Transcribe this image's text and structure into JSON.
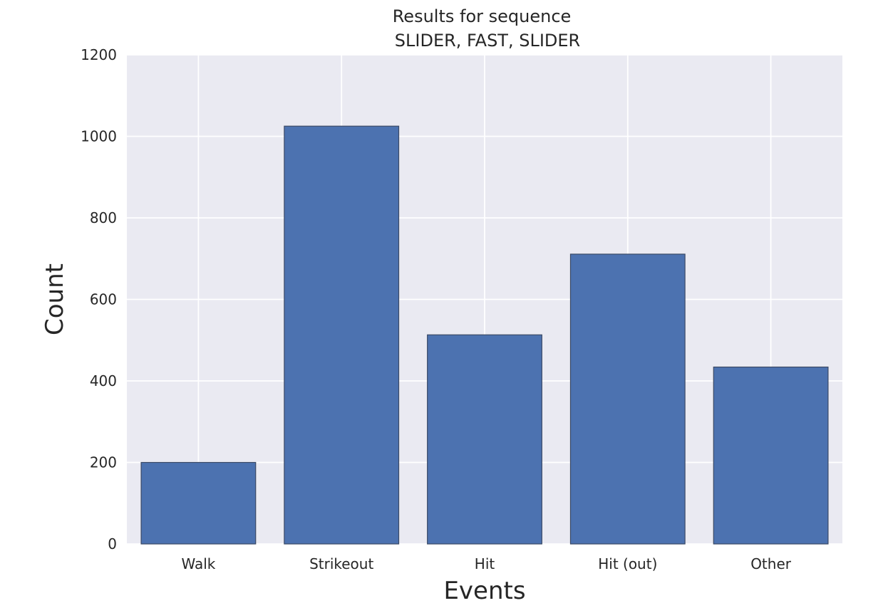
{
  "chart_data": {
    "type": "bar",
    "title_line1": "Results for sequence",
    "title_line2": "SLIDER, FAST, SLIDER",
    "xlabel": "Events",
    "ylabel": "Count",
    "categories": [
      "Walk",
      "Strikeout",
      "Hit",
      "Hit (out)",
      "Other"
    ],
    "values": [
      200,
      1025,
      513,
      711,
      434
    ],
    "ylim": [
      0,
      1200
    ],
    "yticks": [
      0,
      200,
      400,
      600,
      800,
      1000,
      1200
    ],
    "ytick_labels": [
      "0",
      "200",
      "400",
      "600",
      "800",
      "1000",
      "1200"
    ],
    "grid": true,
    "legend": "none",
    "colors": {
      "bar": "#4c72b0",
      "bar_edge": "#3b4a66",
      "plot_background": "#eaeaf2",
      "grid": "#ffffff",
      "text": "#262626"
    }
  }
}
